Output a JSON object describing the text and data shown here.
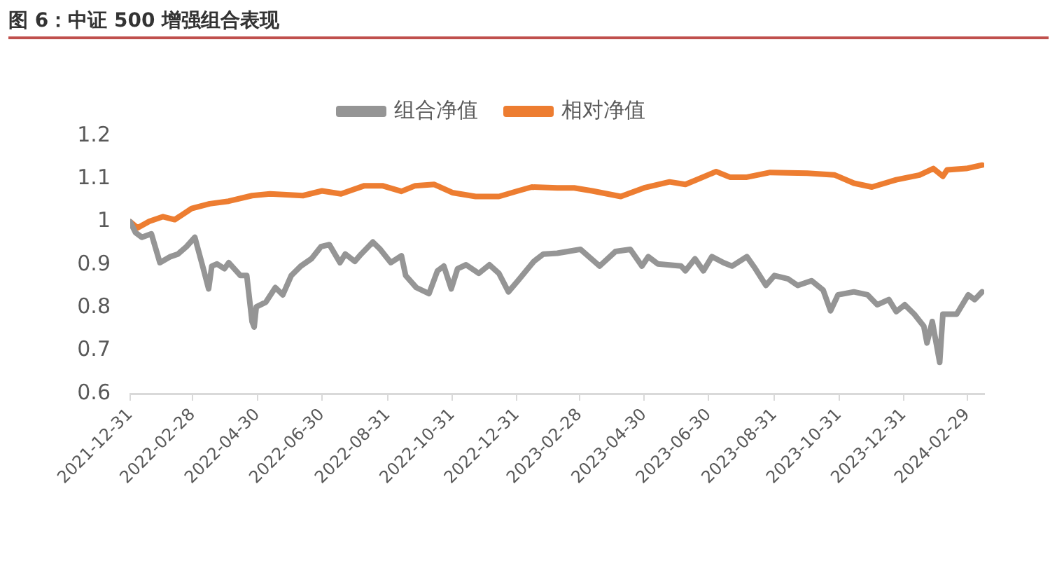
{
  "chart_data": {
    "type": "line",
    "title": "图 6：中证 500 增强组合表现",
    "xlim": [
      "2021-12-31",
      "2024-03-16"
    ],
    "xticks": [
      "2021-12-31",
      "2022-02-28",
      "2022-04-30",
      "2022-06-30",
      "2022-08-31",
      "2022-10-31",
      "2022-12-31",
      "2023-02-28",
      "2023-04-30",
      "2023-06-30",
      "2023-08-31",
      "2023-10-31",
      "2023-12-31",
      "2024-02-29"
    ],
    "ylim": [
      0.6,
      1.2
    ],
    "yticks": [
      0.6,
      0.7,
      0.8,
      0.9,
      1,
      1.1,
      1.2
    ],
    "grid": false,
    "legend": "top",
    "marker": "none",
    "line_style": "solid",
    "series": [
      {
        "name": "组合净值",
        "color": "#959595",
        "x": [
          "2021-12-31",
          "2022-01-05",
          "2022-01-11",
          "2022-01-20",
          "2022-01-28",
          "2022-02-07",
          "2022-02-14",
          "2022-02-22",
          "2022-03-02",
          "2022-03-10",
          "2022-03-15",
          "2022-03-18",
          "2022-03-23",
          "2022-03-30",
          "2022-04-03",
          "2022-04-14",
          "2022-04-20",
          "2022-04-25",
          "2022-04-27",
          "2022-04-29",
          "2022-05-08",
          "2022-05-17",
          "2022-05-24",
          "2022-06-01",
          "2022-06-10",
          "2022-06-20",
          "2022-06-29",
          "2022-07-07",
          "2022-07-17",
          "2022-07-22",
          "2022-07-31",
          "2022-08-06",
          "2022-08-17",
          "2022-08-24",
          "2022-09-03",
          "2022-09-13",
          "2022-09-17",
          "2022-09-27",
          "2022-10-09",
          "2022-10-17",
          "2022-10-23",
          "2022-10-30",
          "2022-11-05",
          "2022-11-13",
          "2022-11-25",
          "2022-12-05",
          "2022-12-14",
          "2022-12-23",
          "2023-01-01",
          "2023-01-16",
          "2023-01-25",
          "2023-02-07",
          "2023-02-17",
          "2023-03-01",
          "2023-03-19",
          "2023-04-03",
          "2023-04-17",
          "2023-04-28",
          "2023-05-04",
          "2023-05-13",
          "2023-06-04",
          "2023-06-08",
          "2023-06-17",
          "2023-06-25",
          "2023-07-03",
          "2023-07-14",
          "2023-07-22",
          "2023-08-05",
          "2023-08-13",
          "2023-08-23",
          "2023-08-31",
          "2023-09-13",
          "2023-09-22",
          "2023-10-05",
          "2023-10-16",
          "2023-10-23",
          "2023-10-30",
          "2023-11-14",
          "2023-11-27",
          "2023-12-06",
          "2023-12-17",
          "2023-12-24",
          "2024-01-01",
          "2024-01-10",
          "2024-01-19",
          "2024-01-22",
          "2024-01-27",
          "2024-02-03",
          "2024-02-06",
          "2024-02-19",
          "2024-03-01",
          "2024-03-07",
          "2024-03-14"
        ],
        "values": [
          1.0,
          0.975,
          0.964,
          0.972,
          0.905,
          0.919,
          0.925,
          0.942,
          0.964,
          0.891,
          0.844,
          0.897,
          0.902,
          0.891,
          0.905,
          0.875,
          0.875,
          0.768,
          0.755,
          0.802,
          0.813,
          0.847,
          0.83,
          0.875,
          0.897,
          0.914,
          0.942,
          0.947,
          0.905,
          0.925,
          0.908,
          0.925,
          0.953,
          0.936,
          0.905,
          0.921,
          0.875,
          0.847,
          0.833,
          0.886,
          0.897,
          0.844,
          0.891,
          0.9,
          0.88,
          0.9,
          0.88,
          0.837,
          0.863,
          0.908,
          0.925,
          0.927,
          0.931,
          0.936,
          0.897,
          0.931,
          0.936,
          0.897,
          0.919,
          0.902,
          0.897,
          0.886,
          0.914,
          0.886,
          0.919,
          0.905,
          0.897,
          0.919,
          0.891,
          0.852,
          0.875,
          0.867,
          0.852,
          0.863,
          0.841,
          0.793,
          0.83,
          0.837,
          0.83,
          0.807,
          0.819,
          0.791,
          0.807,
          0.785,
          0.757,
          0.718,
          0.768,
          0.673,
          0.785,
          0.785,
          0.83,
          0.819,
          0.837
        ]
      },
      {
        "name": "相对净值",
        "color": "#ed7d31",
        "x": [
          "2021-12-31",
          "2022-01-07",
          "2022-01-18",
          "2022-01-31",
          "2022-02-11",
          "2022-02-27",
          "2022-03-16",
          "2022-04-03",
          "2022-04-25",
          "2022-05-12",
          "2022-06-12",
          "2022-06-30",
          "2022-07-18",
          "2022-08-09",
          "2022-08-26",
          "2022-09-13",
          "2022-09-26",
          "2022-10-14",
          "2022-10-31",
          "2022-11-22",
          "2022-12-14",
          "2023-01-01",
          "2023-01-14",
          "2023-02-07",
          "2023-02-23",
          "2023-03-12",
          "2023-04-08",
          "2023-04-30",
          "2023-05-24",
          "2023-06-08",
          "2023-07-07",
          "2023-07-20",
          "2023-08-05",
          "2023-08-27",
          "2023-10-01",
          "2023-10-27",
          "2023-11-14",
          "2023-12-01",
          "2023-12-24",
          "2024-01-15",
          "2024-01-28",
          "2024-02-06",
          "2024-02-10",
          "2024-02-28",
          "2024-03-14"
        ],
        "values": [
          1.0,
          0.986,
          1.001,
          1.012,
          1.005,
          1.031,
          1.042,
          1.048,
          1.061,
          1.065,
          1.061,
          1.072,
          1.065,
          1.084,
          1.084,
          1.071,
          1.084,
          1.087,
          1.068,
          1.059,
          1.059,
          1.072,
          1.081,
          1.079,
          1.079,
          1.072,
          1.059,
          1.079,
          1.093,
          1.087,
          1.117,
          1.104,
          1.104,
          1.115,
          1.113,
          1.109,
          1.09,
          1.081,
          1.098,
          1.109,
          1.124,
          1.106,
          1.121,
          1.124,
          1.132
        ]
      }
    ]
  }
}
